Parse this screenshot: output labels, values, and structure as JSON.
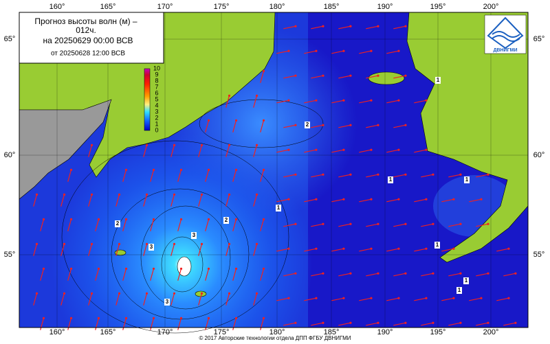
{
  "header": {
    "title": "Прогноз высоты волн (м) –",
    "lead": "012ч.",
    "valid": "на 20250629 00:00 ВСВ",
    "issued": "от 20250628 12:00 ВСВ"
  },
  "logo": {
    "text": "ДВНИГМИ"
  },
  "colorbar": {
    "ticks": [
      0,
      1,
      2,
      3,
      4,
      5,
      6,
      7,
      8,
      9,
      10
    ]
  },
  "longitudes": [
    "160°",
    "165°",
    "170°",
    "175°",
    "180°",
    "185°",
    "190°",
    "195°",
    "200°"
  ],
  "latitudes": [
    "65°",
    "60°",
    "55°"
  ],
  "contour_labels": [
    "2",
    "2",
    "2",
    "3",
    "3",
    "3",
    "1",
    "1",
    "1",
    "1",
    "1",
    "1",
    "1"
  ],
  "footer": "© 2017 Авторские технологии отдела ДПП ФГБУ ДВНИГМИ"
}
